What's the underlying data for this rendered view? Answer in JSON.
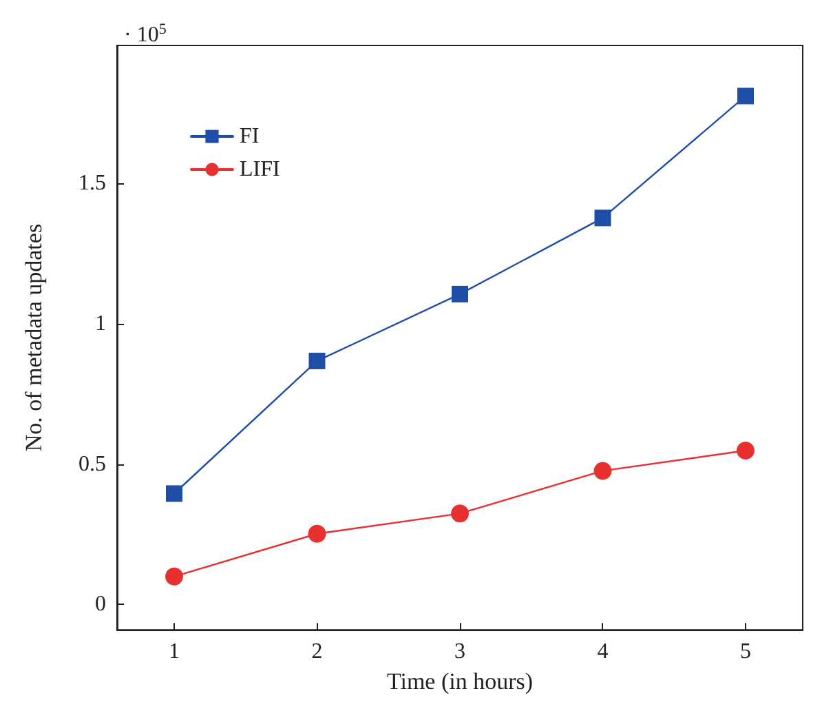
{
  "chart_data": {
    "type": "line",
    "xlabel": "Time (in hours)",
    "ylabel": "No. of metadata updates",
    "annotations": [
      "· 10$^{5}$"
    ],
    "x": [
      1,
      2,
      3,
      4,
      5
    ],
    "series": [
      {
        "name": "FI",
        "color": "#1f4ea8",
        "marker": "square",
        "values": [
          0.395,
          0.867,
          1.105,
          1.376,
          1.81
        ]
      },
      {
        "name": "LIFI",
        "color": "#e8302f",
        "marker": "circle",
        "values": [
          0.1,
          0.252,
          0.324,
          0.476,
          0.548
        ]
      }
    ],
    "xlim": [
      0.6,
      5.4
    ],
    "xticks": [
      1,
      2,
      3,
      4,
      5
    ],
    "ylim": [
      -0.09,
      1.99
    ],
    "yticks": [
      0,
      0.5,
      1,
      1.5
    ],
    "grid": false,
    "legend": "top left",
    "line_style": "solid"
  }
}
